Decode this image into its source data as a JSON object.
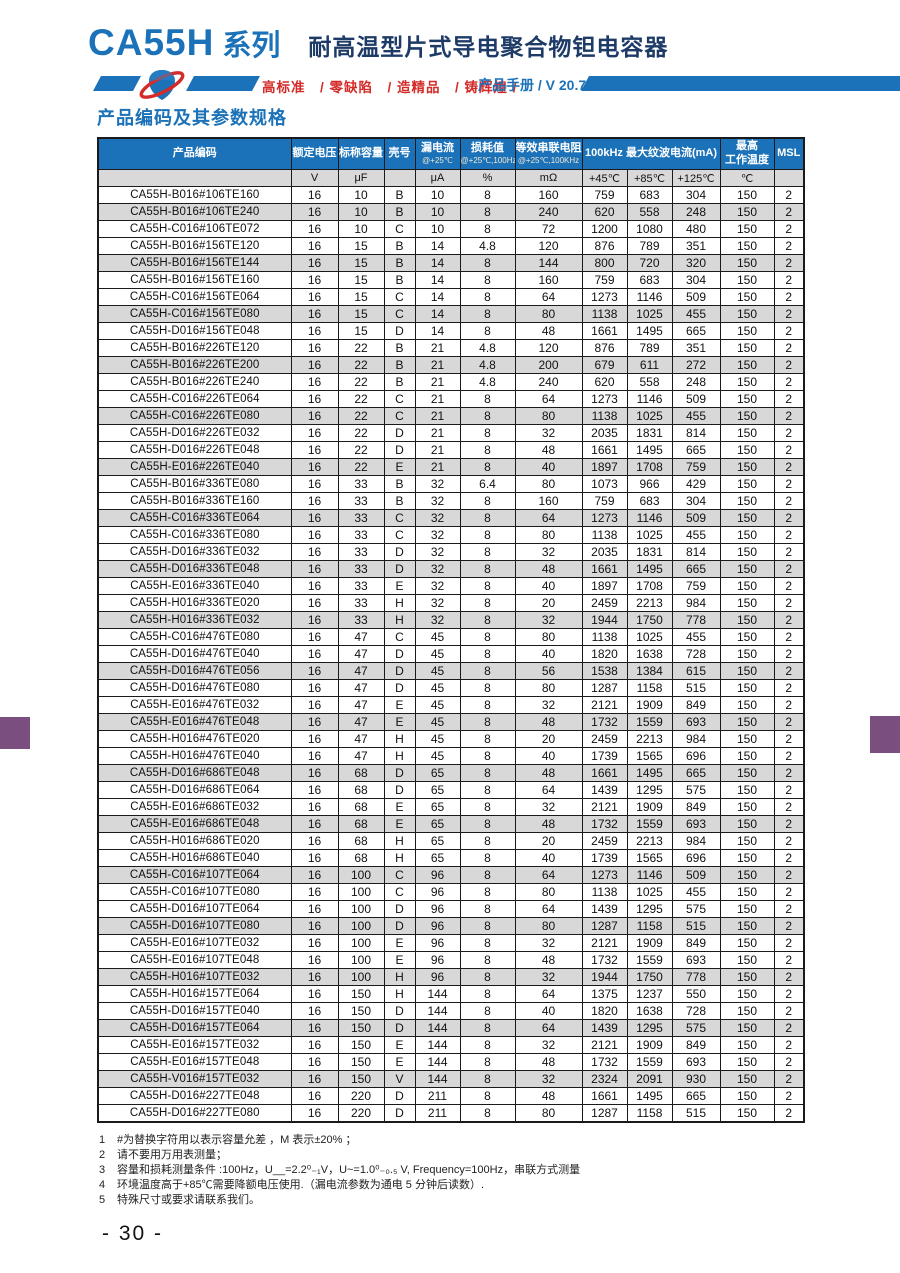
{
  "header": {
    "series": "CA55H",
    "series_suffix": "系列",
    "subtitle": "耐高温型片式导电聚合物钽电容器",
    "slogan": "高标准　/ 零缺陷　/ 造精品　/ 铸辉煌 /",
    "manual": "产品手册 / V 20.7"
  },
  "section_title": "产品编码及其参数规格",
  "colors": {
    "accent_blue": "#1B72B8",
    "slogan_red": "#D42A28",
    "subtitle_navy": "#1E3B68",
    "row_alt_gray": "#D8D8D8",
    "unit_row_gray": "#D9D9D9",
    "side_tab_purple": "#7B4E80"
  },
  "table": {
    "header": {
      "product": "产品编码",
      "voltage": "额定电压",
      "capacitance": "标称容量",
      "case": "壳号",
      "leakage": "漏电流",
      "leakage_cond": "@+25℃",
      "df": "损耗值",
      "df_cond": "@+25℃,100Hz",
      "esr": "等效串联电阻",
      "esr_cond": "@+25℃,100KHz",
      "ripple": "100kHz  最大纹波电流(mA)",
      "max_temp1": "最高",
      "max_temp2": "工作温度",
      "msl": "MSL"
    },
    "units": {
      "voltage": "V",
      "capacitance": "μF",
      "leakage": "μA",
      "df": "%",
      "esr": "mΩ",
      "t45": "+45℃",
      "t85": "+85℃",
      "t125": "+125℃",
      "temp": "℃"
    },
    "rows": [
      [
        "CA55H-B016#106TE160",
        "16",
        "10",
        "B",
        "10",
        "8",
        "160",
        "759",
        "683",
        "304",
        "150",
        "2"
      ],
      [
        "CA55H-B016#106TE240",
        "16",
        "10",
        "B",
        "10",
        "8",
        "240",
        "620",
        "558",
        "248",
        "150",
        "2"
      ],
      [
        "CA55H-C016#106TE072",
        "16",
        "10",
        "C",
        "10",
        "8",
        "72",
        "1200",
        "1080",
        "480",
        "150",
        "2"
      ],
      [
        "CA55H-B016#156TE120",
        "16",
        "15",
        "B",
        "14",
        "4.8",
        "120",
        "876",
        "789",
        "351",
        "150",
        "2"
      ],
      [
        "CA55H-B016#156TE144",
        "16",
        "15",
        "B",
        "14",
        "8",
        "144",
        "800",
        "720",
        "320",
        "150",
        "2"
      ],
      [
        "CA55H-B016#156TE160",
        "16",
        "15",
        "B",
        "14",
        "8",
        "160",
        "759",
        "683",
        "304",
        "150",
        "2"
      ],
      [
        "CA55H-C016#156TE064",
        "16",
        "15",
        "C",
        "14",
        "8",
        "64",
        "1273",
        "1146",
        "509",
        "150",
        "2"
      ],
      [
        "CA55H-C016#156TE080",
        "16",
        "15",
        "C",
        "14",
        "8",
        "80",
        "1138",
        "1025",
        "455",
        "150",
        "2"
      ],
      [
        "CA55H-D016#156TE048",
        "16",
        "15",
        "D",
        "14",
        "8",
        "48",
        "1661",
        "1495",
        "665",
        "150",
        "2"
      ],
      [
        "CA55H-B016#226TE120",
        "16",
        "22",
        "B",
        "21",
        "4.8",
        "120",
        "876",
        "789",
        "351",
        "150",
        "2"
      ],
      [
        "CA55H-B016#226TE200",
        "16",
        "22",
        "B",
        "21",
        "4.8",
        "200",
        "679",
        "611",
        "272",
        "150",
        "2"
      ],
      [
        "CA55H-B016#226TE240",
        "16",
        "22",
        "B",
        "21",
        "4.8",
        "240",
        "620",
        "558",
        "248",
        "150",
        "2"
      ],
      [
        "CA55H-C016#226TE064",
        "16",
        "22",
        "C",
        "21",
        "8",
        "64",
        "1273",
        "1146",
        "509",
        "150",
        "2"
      ],
      [
        "CA55H-C016#226TE080",
        "16",
        "22",
        "C",
        "21",
        "8",
        "80",
        "1138",
        "1025",
        "455",
        "150",
        "2"
      ],
      [
        "CA55H-D016#226TE032",
        "16",
        "22",
        "D",
        "21",
        "8",
        "32",
        "2035",
        "1831",
        "814",
        "150",
        "2"
      ],
      [
        "CA55H-D016#226TE048",
        "16",
        "22",
        "D",
        "21",
        "8",
        "48",
        "1661",
        "1495",
        "665",
        "150",
        "2"
      ],
      [
        "CA55H-E016#226TE040",
        "16",
        "22",
        "E",
        "21",
        "8",
        "40",
        "1897",
        "1708",
        "759",
        "150",
        "2"
      ],
      [
        "CA55H-B016#336TE080",
        "16",
        "33",
        "B",
        "32",
        "6.4",
        "80",
        "1073",
        "966",
        "429",
        "150",
        "2"
      ],
      [
        "CA55H-B016#336TE160",
        "16",
        "33",
        "B",
        "32",
        "8",
        "160",
        "759",
        "683",
        "304",
        "150",
        "2"
      ],
      [
        "CA55H-C016#336TE064",
        "16",
        "33",
        "C",
        "32",
        "8",
        "64",
        "1273",
        "1146",
        "509",
        "150",
        "2"
      ],
      [
        "CA55H-C016#336TE080",
        "16",
        "33",
        "C",
        "32",
        "8",
        "80",
        "1138",
        "1025",
        "455",
        "150",
        "2"
      ],
      [
        "CA55H-D016#336TE032",
        "16",
        "33",
        "D",
        "32",
        "8",
        "32",
        "2035",
        "1831",
        "814",
        "150",
        "2"
      ],
      [
        "CA55H-D016#336TE048",
        "16",
        "33",
        "D",
        "32",
        "8",
        "48",
        "1661",
        "1495",
        "665",
        "150",
        "2"
      ],
      [
        "CA55H-E016#336TE040",
        "16",
        "33",
        "E",
        "32",
        "8",
        "40",
        "1897",
        "1708",
        "759",
        "150",
        "2"
      ],
      [
        "CA55H-H016#336TE020",
        "16",
        "33",
        "H",
        "32",
        "8",
        "20",
        "2459",
        "2213",
        "984",
        "150",
        "2"
      ],
      [
        "CA55H-H016#336TE032",
        "16",
        "33",
        "H",
        "32",
        "8",
        "32",
        "1944",
        "1750",
        "778",
        "150",
        "2"
      ],
      [
        "CA55H-C016#476TE080",
        "16",
        "47",
        "C",
        "45",
        "8",
        "80",
        "1138",
        "1025",
        "455",
        "150",
        "2"
      ],
      [
        "CA55H-D016#476TE040",
        "16",
        "47",
        "D",
        "45",
        "8",
        "40",
        "1820",
        "1638",
        "728",
        "150",
        "2"
      ],
      [
        "CA55H-D016#476TE056",
        "16",
        "47",
        "D",
        "45",
        "8",
        "56",
        "1538",
        "1384",
        "615",
        "150",
        "2"
      ],
      [
        "CA55H-D016#476TE080",
        "16",
        "47",
        "D",
        "45",
        "8",
        "80",
        "1287",
        "1158",
        "515",
        "150",
        "2"
      ],
      [
        "CA55H-E016#476TE032",
        "16",
        "47",
        "E",
        "45",
        "8",
        "32",
        "2121",
        "1909",
        "849",
        "150",
        "2"
      ],
      [
        "CA55H-E016#476TE048",
        "16",
        "47",
        "E",
        "45",
        "8",
        "48",
        "1732",
        "1559",
        "693",
        "150",
        "2"
      ],
      [
        "CA55H-H016#476TE020",
        "16",
        "47",
        "H",
        "45",
        "8",
        "20",
        "2459",
        "2213",
        "984",
        "150",
        "2"
      ],
      [
        "CA55H-H016#476TE040",
        "16",
        "47",
        "H",
        "45",
        "8",
        "40",
        "1739",
        "1565",
        "696",
        "150",
        "2"
      ],
      [
        "CA55H-D016#686TE048",
        "16",
        "68",
        "D",
        "65",
        "8",
        "48",
        "1661",
        "1495",
        "665",
        "150",
        "2"
      ],
      [
        "CA55H-D016#686TE064",
        "16",
        "68",
        "D",
        "65",
        "8",
        "64",
        "1439",
        "1295",
        "575",
        "150",
        "2"
      ],
      [
        "CA55H-E016#686TE032",
        "16",
        "68",
        "E",
        "65",
        "8",
        "32",
        "2121",
        "1909",
        "849",
        "150",
        "2"
      ],
      [
        "CA55H-E016#686TE048",
        "16",
        "68",
        "E",
        "65",
        "8",
        "48",
        "1732",
        "1559",
        "693",
        "150",
        "2"
      ],
      [
        "CA55H-H016#686TE020",
        "16",
        "68",
        "H",
        "65",
        "8",
        "20",
        "2459",
        "2213",
        "984",
        "150",
        "2"
      ],
      [
        "CA55H-H016#686TE040",
        "16",
        "68",
        "H",
        "65",
        "8",
        "40",
        "1739",
        "1565",
        "696",
        "150",
        "2"
      ],
      [
        "CA55H-C016#107TE064",
        "16",
        "100",
        "C",
        "96",
        "8",
        "64",
        "1273",
        "1146",
        "509",
        "150",
        "2"
      ],
      [
        "CA55H-C016#107TE080",
        "16",
        "100",
        "C",
        "96",
        "8",
        "80",
        "1138",
        "1025",
        "455",
        "150",
        "2"
      ],
      [
        "CA55H-D016#107TE064",
        "16",
        "100",
        "D",
        "96",
        "8",
        "64",
        "1439",
        "1295",
        "575",
        "150",
        "2"
      ],
      [
        "CA55H-D016#107TE080",
        "16",
        "100",
        "D",
        "96",
        "8",
        "80",
        "1287",
        "1158",
        "515",
        "150",
        "2"
      ],
      [
        "CA55H-E016#107TE032",
        "16",
        "100",
        "E",
        "96",
        "8",
        "32",
        "2121",
        "1909",
        "849",
        "150",
        "2"
      ],
      [
        "CA55H-E016#107TE048",
        "16",
        "100",
        "E",
        "96",
        "8",
        "48",
        "1732",
        "1559",
        "693",
        "150",
        "2"
      ],
      [
        "CA55H-H016#107TE032",
        "16",
        "100",
        "H",
        "96",
        "8",
        "32",
        "1944",
        "1750",
        "778",
        "150",
        "2"
      ],
      [
        "CA55H-H016#157TE064",
        "16",
        "150",
        "H",
        "144",
        "8",
        "64",
        "1375",
        "1237",
        "550",
        "150",
        "2"
      ],
      [
        "CA55H-D016#157TE040",
        "16",
        "150",
        "D",
        "144",
        "8",
        "40",
        "1820",
        "1638",
        "728",
        "150",
        "2"
      ],
      [
        "CA55H-D016#157TE064",
        "16",
        "150",
        "D",
        "144",
        "8",
        "64",
        "1439",
        "1295",
        "575",
        "150",
        "2"
      ],
      [
        "CA55H-E016#157TE032",
        "16",
        "150",
        "E",
        "144",
        "8",
        "32",
        "2121",
        "1909",
        "849",
        "150",
        "2"
      ],
      [
        "CA55H-E016#157TE048",
        "16",
        "150",
        "E",
        "144",
        "8",
        "48",
        "1732",
        "1559",
        "693",
        "150",
        "2"
      ],
      [
        "CA55H-V016#157TE032",
        "16",
        "150",
        "V",
        "144",
        "8",
        "32",
        "2324",
        "2091",
        "930",
        "150",
        "2"
      ],
      [
        "CA55H-D016#227TE048",
        "16",
        "220",
        "D",
        "211",
        "8",
        "48",
        "1661",
        "1495",
        "665",
        "150",
        "2"
      ],
      [
        "CA55H-D016#227TE080",
        "16",
        "220",
        "D",
        "211",
        "8",
        "80",
        "1287",
        "1158",
        "515",
        "150",
        "2"
      ]
    ]
  },
  "notes": [
    {
      "num": "1",
      "text": "#为替换字符用以表示容量允差 ，M 表示±20% ；"
    },
    {
      "num": "2",
      "text": "请不要用万用表测量；"
    },
    {
      "num": "3",
      "text": "容量和损耗测量条件 :100Hz，U__=2.2⁰₋₁V，U~=1.0⁰₋₀.₅ V, Frequency=100Hz，串联方式测量"
    },
    {
      "num": "4",
      "text": "环境温度高于+85℃需要降额电压使用.（漏电流参数为通电 5 分钟后读数）."
    },
    {
      "num": "5",
      "text": "特殊尺寸或要求请联系我们。"
    }
  ],
  "page_number": "- 30 -"
}
